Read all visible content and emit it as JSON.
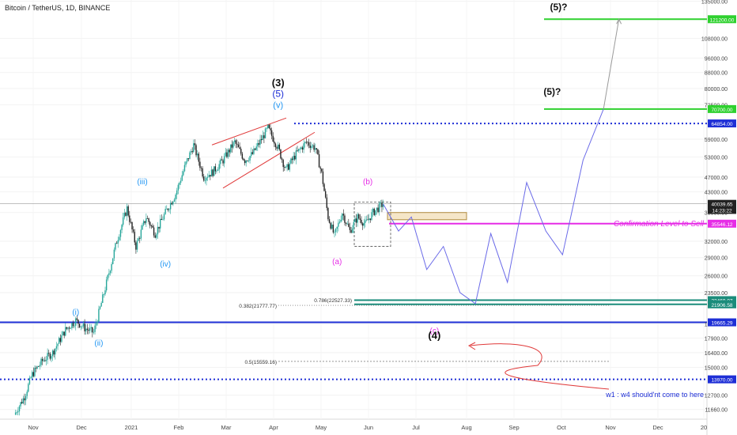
{
  "header": {
    "title": "Bitcoin / TetherUS, 1D, BINANCE"
  },
  "colors": {
    "up": "#26a69a",
    "down": "#222222",
    "green": "#2fd12f",
    "blue": "#1e2fd6",
    "magenta": "#e62ce6",
    "teal": "#1b8c7b",
    "projection": "#6a6ae8",
    "red": "#e03a3a",
    "wave_blue": "#2196f3",
    "purple": "#7b3fb0"
  },
  "chart_data": {
    "type": "candlestick",
    "x_axis": {
      "labels": [
        "Nov",
        "Dec",
        "2021",
        "Feb",
        "Mar",
        "Apr",
        "May",
        "Jun",
        "Jul",
        "Aug",
        "Sep",
        "Oct",
        "Nov",
        "Dec",
        "20"
      ]
    },
    "y_axis": {
      "scale": "log",
      "range": [
        11000,
        136000
      ],
      "ticks": [
        "135000.00",
        "108000.00",
        "96000.00",
        "88000.00",
        "80000.00",
        "72500.00",
        "59000.00",
        "53000.00",
        "47000.00",
        "43000.00",
        "38000.00",
        "32000.00",
        "29000.00",
        "26000.00",
        "23500.00",
        "19500.00",
        "17900.00",
        "16400.00",
        "15000.00",
        "12700.00",
        "11660.00"
      ],
      "price_tags": [
        {
          "label": "121200.00",
          "value": 121200,
          "color": "#2fd12f"
        },
        {
          "label": "70700.00",
          "value": 70700,
          "color": "#2fd12f"
        },
        {
          "label": "64854.00",
          "value": 64854,
          "color": "#1e2fd6"
        },
        {
          "label": "40039.65",
          "value": 40039.65,
          "color": "#222222"
        },
        {
          "label": "14:23:22",
          "value": 38600,
          "color": "#222222"
        },
        {
          "label": "35546.12",
          "value": 35546.12,
          "color": "#e62ce6"
        },
        {
          "label": "22469.07",
          "value": 22469.07,
          "color": "#1b8c7b"
        },
        {
          "label": "21906.58",
          "value": 21906.58,
          "color": "#1b8c7b"
        },
        {
          "label": "19665.29",
          "value": 19665.29,
          "color": "#1e2fd6"
        },
        {
          "label": "13970.00",
          "value": 13970,
          "color": "#1e2fd6"
        }
      ]
    },
    "price_path": [
      [
        0,
        11300
      ],
      [
        8,
        12600
      ],
      [
        14,
        14400
      ],
      [
        22,
        15600
      ],
      [
        30,
        16400
      ],
      [
        40,
        18800
      ],
      [
        48,
        19900
      ],
      [
        55,
        19000
      ],
      [
        62,
        18500
      ],
      [
        70,
        23400
      ],
      [
        80,
        32000
      ],
      [
        88,
        39000
      ],
      [
        95,
        31000
      ],
      [
        103,
        37000
      ],
      [
        110,
        33500
      ],
      [
        118,
        38000
      ],
      [
        126,
        42500
      ],
      [
        134,
        51000
      ],
      [
        140,
        57000
      ],
      [
        148,
        47000
      ],
      [
        155,
        48500
      ],
      [
        163,
        52000
      ],
      [
        172,
        58000
      ],
      [
        180,
        52000
      ],
      [
        186,
        54000
      ],
      [
        193,
        59000
      ],
      [
        198,
        63000
      ],
      [
        206,
        56000
      ],
      [
        212,
        49000
      ],
      [
        220,
        54000
      ],
      [
        228,
        58000
      ],
      [
        235,
        56000
      ],
      [
        240,
        48000
      ],
      [
        245,
        37000
      ],
      [
        250,
        33000
      ],
      [
        256,
        38000
      ],
      [
        262,
        34000
      ],
      [
        268,
        37000
      ],
      [
        274,
        35500
      ],
      [
        280,
        38000
      ],
      [
        288,
        40039.65
      ]
    ],
    "levels": [
      {
        "value": 121200,
        "style": "solid",
        "color": "#2fd12f"
      },
      {
        "value": 70700,
        "style": "solid",
        "color": "#2fd12f"
      },
      {
        "value": 64854,
        "style": "dotted",
        "color": "#1e2fd6"
      },
      {
        "value": 40039.65,
        "style": "thin",
        "color": "#999999"
      },
      {
        "value": 35546.12,
        "style": "solid",
        "color": "#e62ce6"
      },
      {
        "value": 22469.07,
        "style": "solid",
        "color": "#1b8c7b"
      },
      {
        "value": 21906.58,
        "style": "solid",
        "color": "#1b8c7b"
      },
      {
        "value": 19665.29,
        "style": "solid",
        "color": "#1e2fd6"
      },
      {
        "value": 13970,
        "style": "dotted",
        "color": "#1e2fd6"
      }
    ],
    "fib_labels": [
      {
        "text": "0.786(22527.33)",
        "value": 22527.33
      },
      {
        "text": "0.382(21777.77)",
        "value": 21777.77
      },
      {
        "text": "0.5(15559.16)",
        "value": 15559.16
      }
    ],
    "projection_path": [
      [
        288,
        40000
      ],
      [
        300,
        34000
      ],
      [
        310,
        37000
      ],
      [
        322,
        27000
      ],
      [
        335,
        31000
      ],
      [
        348,
        23500
      ],
      [
        360,
        22000
      ],
      [
        372,
        33500
      ],
      [
        385,
        25000
      ],
      [
        400,
        45500
      ],
      [
        415,
        34000
      ],
      [
        428,
        29500
      ],
      [
        444,
        52000
      ],
      [
        460,
        70700
      ],
      [
        472,
        121200
      ]
    ],
    "wave_labels": [
      {
        "text": "(3)",
        "x": 206,
        "y": 81000,
        "color": "#111111",
        "size": 13,
        "bold": true
      },
      {
        "text": "(5)",
        "x": 206,
        "y": 76000,
        "color": "#1e2fd6",
        "size": 12,
        "bold": false
      },
      {
        "text": "(v)",
        "x": 206,
        "y": 71200,
        "color": "#2196f3",
        "size": 11,
        "bold": false
      },
      {
        "text": "(iii)",
        "x": 100,
        "y": 45000,
        "color": "#2196f3",
        "size": 10,
        "bold": false
      },
      {
        "text": "(iv)",
        "x": 118,
        "y": 27500,
        "color": "#2196f3",
        "size": 10,
        "bold": false
      },
      {
        "text": "(i)",
        "x": 48,
        "y": 20600,
        "color": "#2196f3",
        "size": 10,
        "bold": false
      },
      {
        "text": "(ii)",
        "x": 66,
        "y": 17100,
        "color": "#2196f3",
        "size": 10,
        "bold": false
      },
      {
        "text": "(b)",
        "x": 276,
        "y": 45000,
        "color": "#e62ce6",
        "size": 10,
        "bold": false
      },
      {
        "text": "(a)",
        "x": 252,
        "y": 27900,
        "color": "#e62ce6",
        "size": 10,
        "bold": false
      },
      {
        "text": "(c)",
        "x": 328,
        "y": 18400,
        "color": "#e62ce6",
        "size": 10,
        "bold": false
      },
      {
        "text": "(4)",
        "x": 328,
        "y": 17800,
        "color": "#111111",
        "size": 13,
        "bold": true
      },
      {
        "text": "(5)?",
        "x": 425,
        "y": 128000,
        "color": "#111111",
        "size": 12,
        "bold": true
      },
      {
        "text": "(5)?",
        "x": 420,
        "y": 77000,
        "color": "#111111",
        "size": 12,
        "bold": true
      }
    ],
    "annotations": [
      {
        "text": "Confirmation Level to Sell",
        "color": "#e62ce6"
      },
      {
        "text": "w1 : w4 should'nt come to here",
        "color": "#1e2fd6"
      }
    ]
  }
}
